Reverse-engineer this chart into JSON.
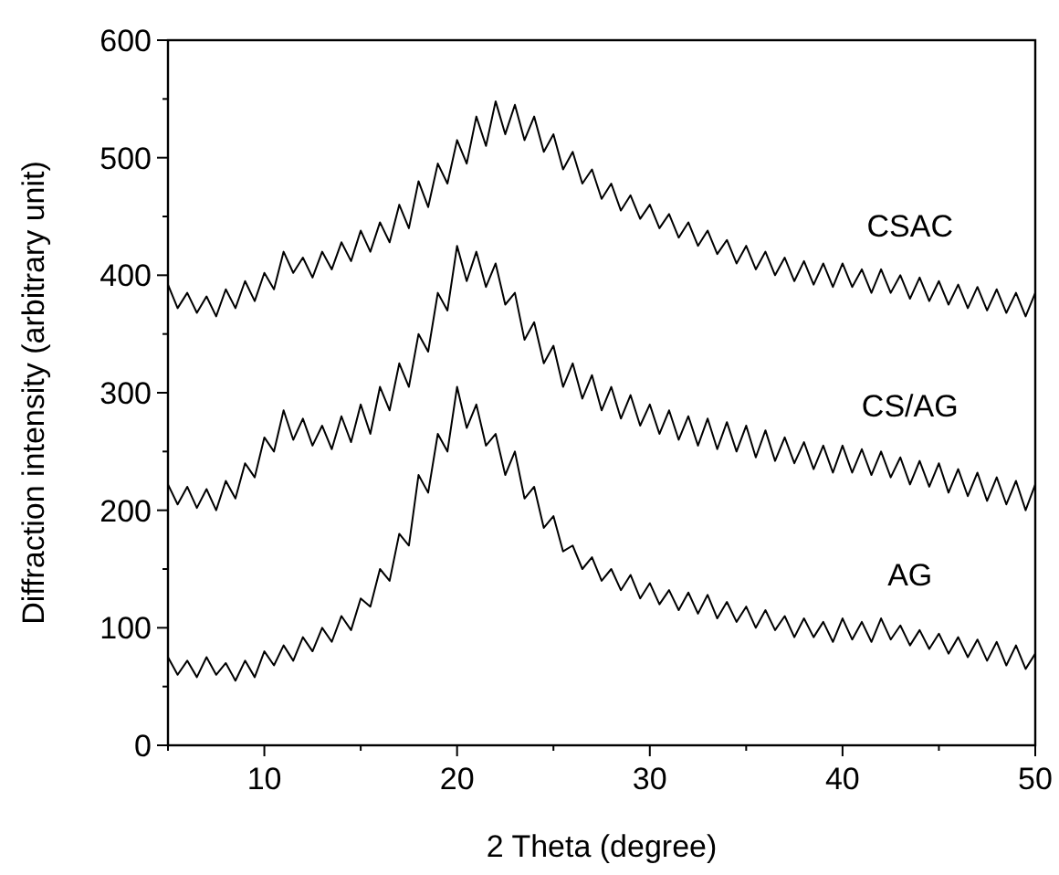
{
  "chart_data": {
    "type": "line",
    "xlabel": "2 Theta (degree)",
    "ylabel": "Diffraction intensity (arbitrary unit)",
    "xlim": [
      5,
      50
    ],
    "ylim": [
      0,
      600
    ],
    "xticks": [
      {
        "value": 5,
        "label": null
      },
      10,
      {
        "value": 15,
        "label": null
      },
      20,
      {
        "value": 25,
        "label": null
      },
      30,
      {
        "value": 35,
        "label": null
      },
      40,
      {
        "value": 45,
        "label": null
      },
      50
    ],
    "yticks": [
      0,
      {
        "value": 50,
        "label": null
      },
      100,
      {
        "value": 150,
        "label": null
      },
      200,
      {
        "value": 250,
        "label": null
      },
      300,
      {
        "value": 350,
        "label": null
      },
      400,
      {
        "value": 450,
        "label": null
      },
      500,
      {
        "value": 550,
        "label": null
      },
      600
    ],
    "grid": false,
    "line_style": "solid",
    "marker": "none",
    "x": [
      5,
      5.5,
      6,
      6.5,
      7,
      7.5,
      8,
      8.5,
      9,
      9.5,
      10,
      10.5,
      11,
      11.5,
      12,
      12.5,
      13,
      13.5,
      14,
      14.5,
      15,
      15.5,
      16,
      16.5,
      17,
      17.5,
      18,
      18.5,
      19,
      19.5,
      20,
      20.5,
      21,
      21.5,
      22,
      22.5,
      23,
      23.5,
      24,
      24.5,
      25,
      25.5,
      26,
      26.5,
      27,
      27.5,
      28,
      28.5,
      29,
      29.5,
      30,
      30.5,
      31,
      31.5,
      32,
      32.5,
      33,
      33.5,
      34,
      34.5,
      35,
      35.5,
      36,
      36.5,
      37,
      37.5,
      38,
      38.5,
      39,
      39.5,
      40,
      40.5,
      41,
      41.5,
      42,
      42.5,
      43,
      43.5,
      44,
      44.5,
      45,
      45.5,
      46,
      46.5,
      47,
      47.5,
      48,
      48.5,
      49,
      49.5,
      50
    ],
    "series": [
      {
        "name": "CSAC",
        "color": "#000000",
        "values": [
          392,
          372,
          385,
          368,
          382,
          365,
          388,
          372,
          395,
          378,
          402,
          388,
          420,
          402,
          415,
          398,
          420,
          405,
          428,
          412,
          438,
          420,
          445,
          428,
          460,
          440,
          480,
          458,
          495,
          478,
          515,
          495,
          535,
          510,
          548,
          520,
          545,
          515,
          535,
          505,
          520,
          490,
          505,
          478,
          490,
          465,
          478,
          455,
          468,
          448,
          460,
          440,
          452,
          432,
          445,
          425,
          438,
          418,
          430,
          410,
          425,
          405,
          420,
          400,
          415,
          395,
          412,
          392,
          410,
          390,
          410,
          390,
          405,
          385,
          405,
          385,
          400,
          380,
          398,
          378,
          395,
          375,
          392,
          372,
          390,
          370,
          388,
          368,
          385,
          365,
          385
        ]
      },
      {
        "name": "CS/AG",
        "color": "#000000",
        "values": [
          222,
          205,
          220,
          202,
          218,
          200,
          225,
          210,
          240,
          228,
          262,
          250,
          285,
          260,
          278,
          255,
          272,
          252,
          280,
          258,
          290,
          265,
          305,
          285,
          325,
          305,
          350,
          335,
          385,
          370,
          425,
          395,
          420,
          390,
          410,
          375,
          385,
          345,
          360,
          325,
          340,
          305,
          325,
          295,
          315,
          285,
          305,
          278,
          298,
          272,
          290,
          265,
          285,
          260,
          280,
          255,
          278,
          252,
          275,
          250,
          272,
          245,
          268,
          242,
          262,
          240,
          258,
          235,
          255,
          232,
          255,
          232,
          252,
          230,
          250,
          228,
          245,
          222,
          242,
          220,
          240,
          215,
          235,
          212,
          232,
          208,
          228,
          205,
          225,
          200,
          222
        ]
      },
      {
        "name": "AG",
        "color": "#000000",
        "values": [
          75,
          60,
          72,
          58,
          75,
          60,
          70,
          55,
          72,
          58,
          80,
          68,
          85,
          72,
          92,
          80,
          100,
          88,
          110,
          98,
          125,
          118,
          150,
          140,
          180,
          170,
          230,
          215,
          265,
          250,
          305,
          270,
          290,
          255,
          265,
          230,
          250,
          210,
          220,
          185,
          195,
          165,
          170,
          150,
          160,
          140,
          150,
          132,
          145,
          125,
          138,
          120,
          132,
          115,
          130,
          112,
          128,
          108,
          122,
          105,
          118,
          100,
          115,
          98,
          110,
          92,
          108,
          92,
          105,
          88,
          108,
          90,
          105,
          88,
          108,
          90,
          102,
          85,
          98,
          82,
          95,
          78,
          92,
          75,
          90,
          72,
          88,
          68,
          85,
          65,
          78
        ]
      }
    ]
  }
}
